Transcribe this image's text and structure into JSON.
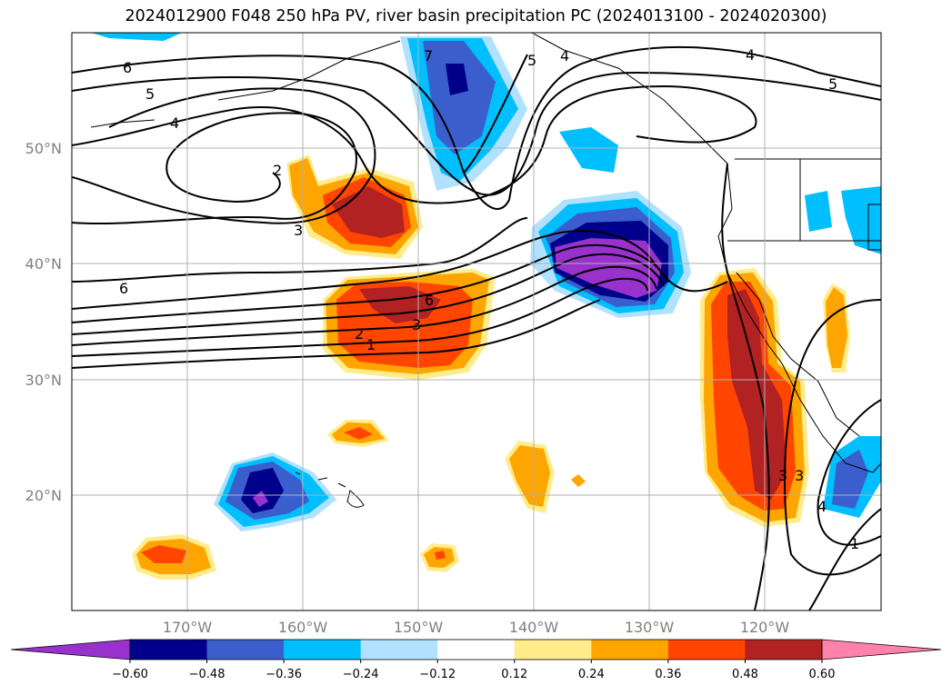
{
  "title": "2024012900 F048 250 hPa PV, river basin precipitation PC (2024013100 - 2024020300)",
  "map": {
    "lat_labels": [
      "50°N",
      "40°N",
      "30°N",
      "20°N"
    ],
    "lon_labels": [
      "170°W",
      "160°W",
      "150°W",
      "140°W",
      "130°W",
      "120°W"
    ],
    "extent": {
      "lon_min": -180,
      "lon_max": -110,
      "lat_min": 10,
      "lat_max": 60
    },
    "contour_labels": [
      "6",
      "5",
      "4",
      "2",
      "3",
      "7",
      "6",
      "6",
      "3",
      "2",
      "1",
      "5",
      "4",
      "4",
      "5",
      "3",
      "3",
      "4",
      "1"
    ]
  },
  "colorbar": {
    "ticks": [
      "−0.60",
      "−0.48",
      "−0.36",
      "−0.24",
      "−0.12",
      "0.12",
      "0.24",
      "0.36",
      "0.48",
      "0.60"
    ],
    "colors": [
      "#9932cc",
      "#00008b",
      "#3a5fcd",
      "#00bfff",
      "#b0e2ff",
      "#ffffff",
      "#ffec8b",
      "#ffa500",
      "#ff4500",
      "#b22222",
      "#ff82ab"
    ]
  }
}
